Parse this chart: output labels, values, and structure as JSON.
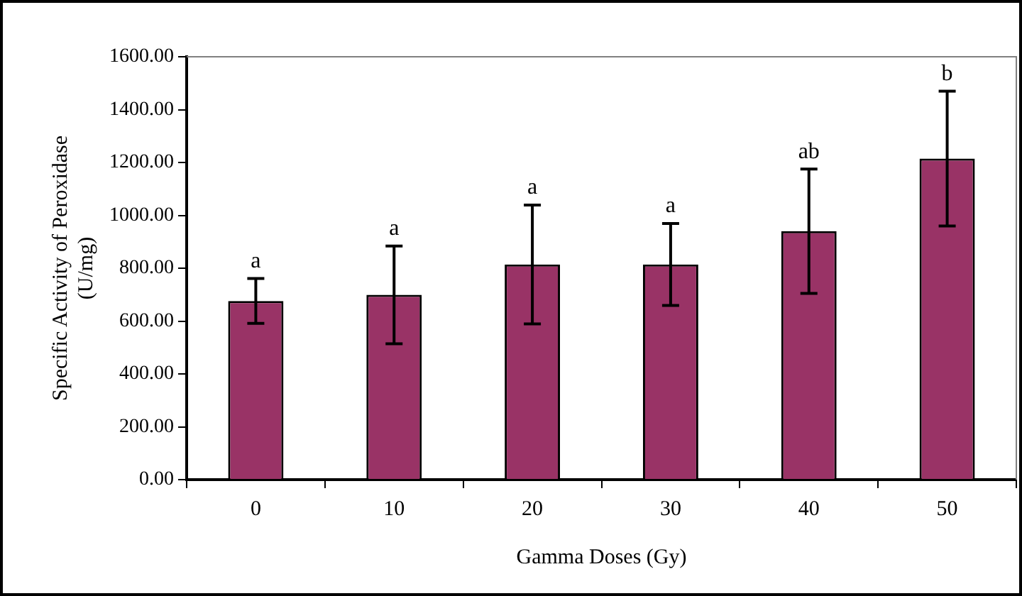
{
  "chart_data": {
    "type": "bar",
    "xlabel": "Gamma Doses (Gy)",
    "ylabel": "Specific Activity of Peroxidase\n(U/mg)",
    "categories": [
      "0",
      "10",
      "20",
      "30",
      "40",
      "50"
    ],
    "values": [
      676,
      699,
      814,
      814,
      940,
      1215
    ],
    "errors": [
      85,
      185,
      225,
      155,
      235,
      255
    ],
    "color": "#993366",
    "ylim": [
      0,
      1600
    ],
    "yticks": [
      {
        "value": 0,
        "label": "0.00"
      },
      {
        "value": 200,
        "label": "200.00"
      },
      {
        "value": 400,
        "label": "400.00"
      },
      {
        "value": 600,
        "label": "600.00"
      },
      {
        "value": 800,
        "label": "800.00"
      },
      {
        "value": 1000,
        "label": "1000.00"
      },
      {
        "value": 1200,
        "label": "1200.00"
      },
      {
        "value": 1400,
        "label": "1400.00"
      },
      {
        "value": 1600,
        "label": "1600.00"
      }
    ],
    "annotations": [
      {
        "text": "a",
        "x": "0",
        "y": 761
      },
      {
        "text": "a",
        "x": "10",
        "y": 884
      },
      {
        "text": "a",
        "x": "20",
        "y": 1039
      },
      {
        "text": "a",
        "x": "30",
        "y": 969
      },
      {
        "text": "ab",
        "x": "40",
        "y": 1175
      },
      {
        "text": "b",
        "x": "50",
        "y": 1470
      }
    ],
    "grid": false,
    "legend": false
  }
}
